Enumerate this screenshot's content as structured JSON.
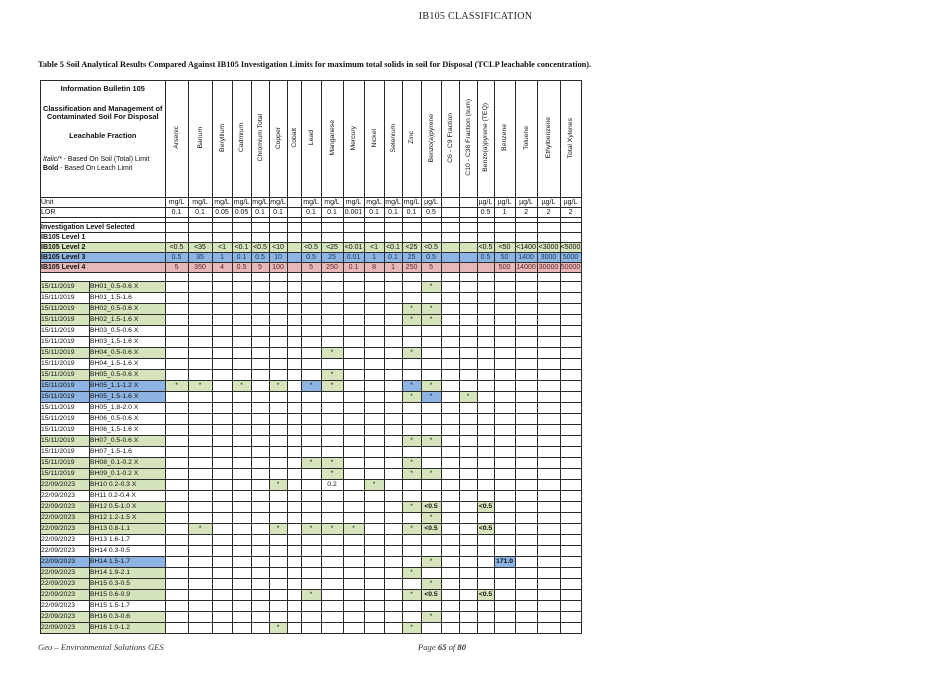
{
  "page": {
    "header_title": "IB105 CLASSIFICATION",
    "table_title": "Table 5  Soil Analytical Results Compared Against IB105 Investigation Limits for maximum total solids in soil for Disposal (TCLP leachable concentration)."
  },
  "footer": {
    "left": "Geo – Environmental Solutions GES",
    "page_label": "Page",
    "page_number": "65",
    "of_label": "of",
    "page_total": "80"
  },
  "colors": {
    "green": "#d6e4bc",
    "blue": "#8db4e2",
    "pink": "#e6b9b8",
    "white": "#ffffff"
  },
  "table": {
    "info_cell": {
      "line1": "Information Bulletin 105",
      "line2": "Classification and Management of",
      "line3": "Contaminated Soil For Disposal",
      "line4": "Leachable Fraction",
      "legend_italic_term": "Italic/*",
      "legend_italic_rest": " - Based On Soil (Total) Limit",
      "legend_bold_term": "Bold",
      "legend_bold_rest": " - Based On Leach Limit"
    },
    "unit_label": "Unit",
    "lor_label": "LOR",
    "invest_label": "Investigation Level Selected",
    "columns": [
      {
        "label": "Arsenic",
        "unit": "mg/L",
        "lor": "0.1"
      },
      {
        "label": "Barium",
        "unit": "mg/L",
        "lor": "0.1"
      },
      {
        "label": "Beryllium",
        "unit": "mg/L",
        "lor": "0.05"
      },
      {
        "label": "Cadmium",
        "unit": "mg/L",
        "lor": "0.05"
      },
      {
        "label": "Chromium Total",
        "unit": "mg/L",
        "lor": "0.1"
      },
      {
        "label": "Copper",
        "unit": "mg/L",
        "lor": "0.1"
      },
      {
        "label": "Cobalt",
        "unit": "",
        "lor": ""
      },
      {
        "label": "Lead",
        "unit": "mg/L",
        "lor": "0.1"
      },
      {
        "label": "Manganese",
        "unit": "mg/L",
        "lor": "0.1"
      },
      {
        "label": "Mercury",
        "unit": "mg/L",
        "lor": "0.001"
      },
      {
        "label": "Nickel",
        "unit": "mg/L",
        "lor": "0.1"
      },
      {
        "label": "Selenium",
        "unit": "mg/L",
        "lor": "0.1"
      },
      {
        "label": "Zinc",
        "unit": "mg/L",
        "lor": "0.1"
      },
      {
        "label": "Benzo(a)pyrene",
        "unit": "µg/L",
        "lor": "0.5"
      },
      {
        "label": "C6 - C9 Fraction",
        "unit": "",
        "lor": ""
      },
      {
        "label": "C10 - C36 Fraction (sum)",
        "unit": "",
        "lor": ""
      },
      {
        "label": "Benzo(a)pyrene (TEQ)",
        "unit": "µg/L",
        "lor": "0.5"
      },
      {
        "label": "Benzene",
        "unit": "µg/L",
        "lor": "1"
      },
      {
        "label": "Toluene",
        "unit": "µg/L",
        "lor": "2"
      },
      {
        "label": "Ethylbenzene",
        "unit": "µg/L",
        "lor": "2"
      },
      {
        "label": "Total Xylenes",
        "unit": "µg/L",
        "lor": "2"
      }
    ],
    "level_rows": [
      {
        "label": "IB105 Level 1",
        "color": "white",
        "values": [
          "",
          "",
          "",
          "",
          "",
          "",
          "",
          "",
          "",
          "",
          "",
          "",
          "",
          "",
          "",
          "",
          "",
          "",
          "",
          "",
          ""
        ]
      },
      {
        "label": "IB105 Level 2",
        "color": "green",
        "values": [
          "<0.5",
          "<35",
          "<1",
          "<0.1",
          "<0.5",
          "<10",
          "",
          "<0.5",
          "<25",
          "<0.01",
          "<1",
          "<0.1",
          "<25",
          "<0.5",
          "",
          "",
          "<0.5",
          "<50",
          "<1400",
          "<3000",
          "<5000"
        ]
      },
      {
        "label": "IB105 Level 3",
        "color": "blue",
        "values": [
          "0.5",
          "35",
          "1",
          "0.1",
          "0.5",
          "10",
          "",
          "0.5",
          "25",
          "0.01",
          "1",
          "0.1",
          "25",
          "0.5",
          "",
          "",
          "0.5",
          "50",
          "1400",
          "3000",
          "5000"
        ]
      },
      {
        "label": "IB105 Level 4",
        "color": "pink",
        "values": [
          "5",
          "350",
          "4",
          "0.5",
          "5",
          "100",
          "",
          "5",
          "250",
          "0.1",
          "8",
          "1",
          "250",
          "5",
          "",
          "",
          "",
          "500",
          "14000",
          "30000",
          "50000"
        ]
      }
    ],
    "rows": [
      {
        "date": "15/11/2019",
        "sample": "BH01_0.5-0.6 X",
        "highlight": "green",
        "cells": {
          "13": {
            "bg": "green",
            "t": "*"
          }
        }
      },
      {
        "date": "15/11/2019",
        "sample": "BH01_1.5-1.6",
        "highlight": "white",
        "cells": {}
      },
      {
        "date": "15/11/2019",
        "sample": "BH02_0.5-0.6 X",
        "highlight": "green",
        "cells": {
          "12": {
            "bg": "green",
            "t": "*"
          },
          "13": {
            "bg": "green",
            "t": "*"
          }
        }
      },
      {
        "date": "15/11/2019",
        "sample": "BH02_1.5-1.6 X",
        "highlight": "green",
        "cells": {
          "12": {
            "bg": "green",
            "t": "*"
          },
          "13": {
            "bg": "green",
            "t": "*"
          }
        }
      },
      {
        "date": "15/11/2019",
        "sample": "BH03_0.5-0.6 X",
        "highlight": "white",
        "cells": {}
      },
      {
        "date": "15/11/2019",
        "sample": "BH03_1.5-1.6 X",
        "highlight": "white",
        "cells": {}
      },
      {
        "date": "15/11/2019",
        "sample": "BH04_0.5-0.6 X",
        "highlight": "green",
        "cells": {
          "8": {
            "bg": "green",
            "t": "*"
          },
          "12": {
            "bg": "green",
            "t": "*"
          }
        }
      },
      {
        "date": "15/11/2019",
        "sample": "BH04_1.5-1.6 X",
        "highlight": "white",
        "cells": {}
      },
      {
        "date": "15/11/2019",
        "sample": "BH05_0.5-0.6 X",
        "highlight": "green",
        "cells": {
          "8": {
            "bg": "green",
            "t": "*"
          }
        }
      },
      {
        "date": "15/11/2019",
        "sample": "BH05_1.1-1.2 X",
        "highlight": "blue",
        "cells": {
          "0": {
            "bg": "green",
            "t": "*"
          },
          "1": {
            "bg": "green",
            "t": "*"
          },
          "3": {
            "bg": "green",
            "t": "*"
          },
          "5": {
            "bg": "green",
            "t": "*"
          },
          "7": {
            "bg": "blue",
            "t": "*"
          },
          "8": {
            "bg": "green",
            "t": "*"
          },
          "12": {
            "bg": "blue",
            "t": "*"
          },
          "13": {
            "bg": "green",
            "t": "*"
          }
        }
      },
      {
        "date": "15/11/2019",
        "sample": "BH05_1.5-1.6 X",
        "highlight": "blue",
        "cells": {
          "12": {
            "bg": "green",
            "t": "*"
          },
          "13": {
            "bg": "blue",
            "t": "*"
          },
          "15": {
            "bg": "green",
            "t": "*"
          }
        }
      },
      {
        "date": "15/11/2019",
        "sample": "BH05_1.8-2.0 X",
        "highlight": "white",
        "cells": {}
      },
      {
        "date": "15/11/2019",
        "sample": "BH06_0.5-0.6 X",
        "highlight": "white",
        "cells": {}
      },
      {
        "date": "15/11/2019",
        "sample": "BH06_1.5-1.6 X",
        "highlight": "white",
        "cells": {}
      },
      {
        "date": "15/11/2019",
        "sample": "BH07_0.5-0.6 X",
        "highlight": "green",
        "cells": {
          "12": {
            "bg": "green",
            "t": "*"
          },
          "13": {
            "bg": "green",
            "t": "*"
          }
        }
      },
      {
        "date": "15/11/2019",
        "sample": "BH07_1.5-1.6",
        "highlight": "white",
        "cells": {}
      },
      {
        "date": "15/11/2019",
        "sample": "BH08_0.1-0.2 X",
        "highlight": "green",
        "cells": {
          "7": {
            "bg": "green",
            "t": "*"
          },
          "8": {
            "bg": "green",
            "t": "*"
          },
          "12": {
            "bg": "green",
            "t": "*"
          }
        }
      },
      {
        "date": "15/11/2019",
        "sample": "BH09_0.1-0.2 X",
        "highlight": "green",
        "cells": {
          "8": {
            "bg": "green",
            "t": "*"
          },
          "12": {
            "bg": "green",
            "t": "*"
          },
          "13": {
            "bg": "green",
            "t": "*"
          }
        }
      },
      {
        "date": "22/09/2023",
        "sample": "BH10 0.2-0.3 X",
        "highlight": "green",
        "cells": {
          "5": {
            "bg": "green",
            "t": "*"
          },
          "8": {
            "bg": "white",
            "t": "0.2"
          },
          "10": {
            "bg": "green",
            "t": "*"
          }
        }
      },
      {
        "date": "22/09/2023",
        "sample": "BH11 0.2-0.4 X",
        "highlight": "white",
        "cells": {}
      },
      {
        "date": "22/09/2023",
        "sample": "BH12 0.5-1.0 X",
        "highlight": "green",
        "cells": {
          "12": {
            "bg": "green",
            "t": "*"
          },
          "13": {
            "bg": "green",
            "t": "<0.5",
            "bold": true
          },
          "16": {
            "bg": "green",
            "t": "<0.5",
            "bold": true
          }
        }
      },
      {
        "date": "22/09/2023",
        "sample": "BH12 1.2-1.5 X",
        "highlight": "green",
        "cells": {
          "13": {
            "bg": "green",
            "t": "*"
          }
        }
      },
      {
        "date": "22/09/2023",
        "sample": "BH13 0.8-1.1",
        "highlight": "green",
        "cells": {
          "1": {
            "bg": "green",
            "t": "*"
          },
          "5": {
            "bg": "green",
            "t": "*"
          },
          "7": {
            "bg": "green",
            "t": "*"
          },
          "8": {
            "bg": "green",
            "t": "*"
          },
          "9": {
            "bg": "green",
            "t": "*"
          },
          "12": {
            "bg": "green",
            "t": "*"
          },
          "13": {
            "bg": "green",
            "t": "<0.5",
            "bold": true
          },
          "16": {
            "bg": "green",
            "t": "<0.5",
            "bold": true
          }
        }
      },
      {
        "date": "22/09/2023",
        "sample": "BH13 1.6-1.7",
        "highlight": "white",
        "cells": {}
      },
      {
        "date": "22/09/2023",
        "sample": "BH14 0.3-0.5",
        "highlight": "white",
        "cells": {}
      },
      {
        "date": "22/09/2023",
        "sample": "BH14 1.5-1.7",
        "highlight": "blue",
        "cells": {
          "13": {
            "bg": "green",
            "t": "*"
          },
          "17": {
            "bg": "blue",
            "t": "171.0",
            "bold": true
          }
        }
      },
      {
        "date": "22/09/2023",
        "sample": "BH14 1.9-2.1",
        "highlight": "green",
        "cells": {
          "12": {
            "bg": "green",
            "t": "*"
          }
        }
      },
      {
        "date": "22/09/2023",
        "sample": "BH15 0.3-0.5",
        "highlight": "green",
        "cells": {
          "13": {
            "bg": "green",
            "t": "*"
          }
        }
      },
      {
        "date": "22/09/2023",
        "sample": "BH15 0.6-0.9",
        "highlight": "green",
        "cells": {
          "7": {
            "bg": "green",
            "t": "*"
          },
          "12": {
            "bg": "green",
            "t": "*"
          },
          "13": {
            "bg": "green",
            "t": "<0.5",
            "bold": true
          },
          "16": {
            "bg": "green",
            "t": "<0.5",
            "bold": true
          }
        }
      },
      {
        "date": "22/09/2023",
        "sample": "BH15 1.5-1.7",
        "highlight": "white",
        "cells": {}
      },
      {
        "date": "22/09/2023",
        "sample": "BH16 0.3-0.6",
        "highlight": "green",
        "cells": {
          "13": {
            "bg": "green",
            "t": "*"
          }
        }
      },
      {
        "date": "22/09/2023",
        "sample": "BH16 1.0-1.2",
        "highlight": "green",
        "cells": {
          "5": {
            "bg": "green",
            "t": "*"
          },
          "12": {
            "bg": "green",
            "t": "*"
          }
        }
      }
    ]
  }
}
